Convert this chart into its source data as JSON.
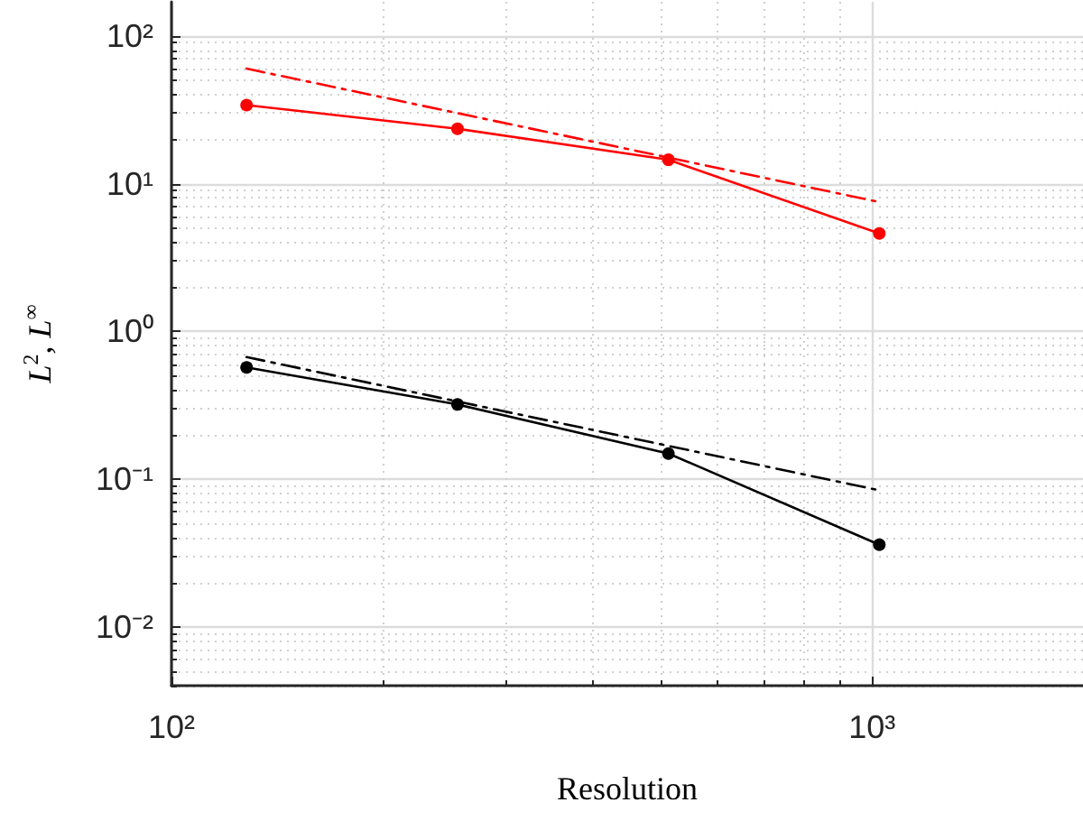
{
  "chart_data": {
    "type": "line",
    "xlabel": "Resolution",
    "ylabel": "L$^{2}$, L$^{∞}$",
    "log": "xy",
    "grid": true,
    "xlim": [
      100,
      2000
    ],
    "ylim": [
      0.004,
      170
    ],
    "xticks": [
      {
        "value": 100,
        "label": "10²"
      },
      {
        "value": 1000,
        "label": "10³"
      }
    ],
    "yticks": [
      {
        "value": 0.01,
        "label": "10⁻²"
      },
      {
        "value": 0.1,
        "label": "10⁻¹"
      },
      {
        "value": 1,
        "label": "10⁰"
      },
      {
        "value": 10,
        "label": "10¹"
      },
      {
        "value": 100,
        "label": "10²"
      }
    ],
    "series": [
      {
        "color": "#ff0000",
        "x": [
          128,
          256,
          512,
          1024
        ],
        "values": [
          34,
          23.5,
          14.5,
          4.6
        ],
        "marker": "circle",
        "line_style": "solid"
      },
      {
        "color": "#ff0000",
        "x": [
          128,
          1024
        ],
        "values": [
          60,
          7.5
        ],
        "marker": "none",
        "line_style": "dashed"
      },
      {
        "color": "#000000",
        "x": [
          128,
          256,
          512,
          1024
        ],
        "values": [
          0.57,
          0.32,
          0.149,
          0.036
        ],
        "marker": "circle",
        "line_style": "solid"
      },
      {
        "color": "#000000",
        "x": [
          128,
          1024
        ],
        "values": [
          0.67,
          0.084
        ],
        "marker": "none",
        "line_style": "dashed"
      }
    ]
  }
}
